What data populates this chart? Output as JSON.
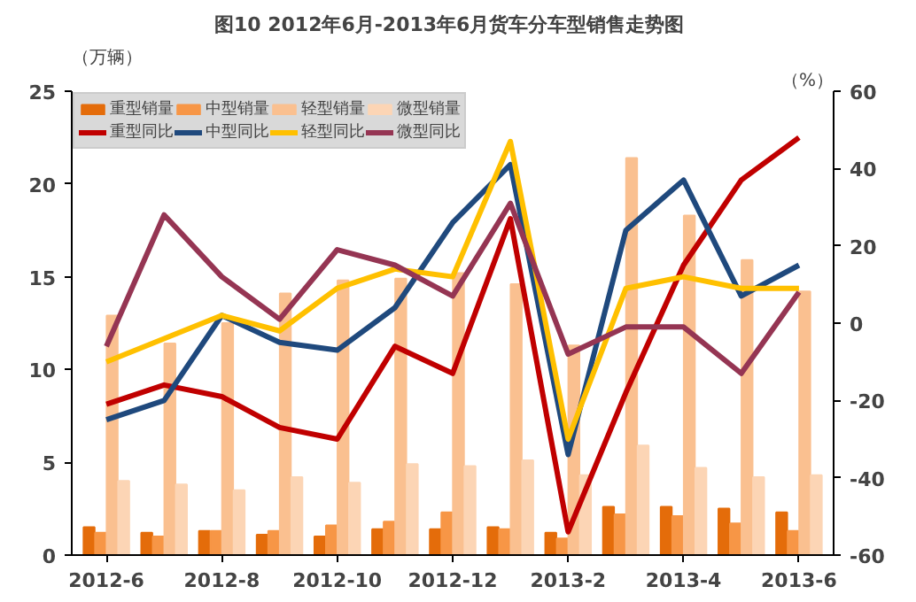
{
  "chart_data": {
    "type": "bar",
    "title": "图10  2012年6月-2013年6月货车分车型销售走势图",
    "ylabel": "（万辆）",
    "y2label": "（%）",
    "categories": [
      "2012-6",
      null,
      "2012-8",
      null,
      "2012-10",
      null,
      "2012-12",
      null,
      "2013-2",
      null,
      "2013-4",
      null,
      "2013-6"
    ],
    "series": [
      {
        "name": "重型销量",
        "color": "#e46c0a",
        "values": [
          1.5,
          1.2,
          1.3,
          1.1,
          1.0,
          1.4,
          1.4,
          1.5,
          1.2,
          2.6,
          2.6,
          2.5,
          2.3
        ]
      },
      {
        "name": "中型销量",
        "color": "#f79646",
        "values": [
          1.2,
          1.0,
          1.3,
          1.3,
          1.6,
          1.8,
          2.3,
          1.4,
          0.9,
          2.2,
          2.1,
          1.7,
          1.3
        ]
      },
      {
        "name": "轻型销量",
        "color": "#fac090",
        "values": [
          12.9,
          11.4,
          12.5,
          14.1,
          14.8,
          14.9,
          15.2,
          14.6,
          11.3,
          21.4,
          18.3,
          15.9,
          14.2
        ]
      },
      {
        "name": "微型销量",
        "color": "#fcd5b5",
        "values": [
          4.0,
          3.8,
          3.5,
          4.2,
          3.9,
          4.9,
          4.8,
          5.1,
          4.3,
          5.9,
          4.7,
          4.2,
          4.3
        ]
      },
      {
        "name": "重型同比",
        "color": "#c00000",
        "type": "line",
        "axis": "y2",
        "values": [
          -21,
          -16,
          -19,
          -27,
          -30,
          -6,
          -13,
          27,
          -54,
          -18,
          15,
          37,
          48
        ]
      },
      {
        "name": "中型同比",
        "color": "#1f497d",
        "type": "line",
        "axis": "y2",
        "values": [
          -25,
          -20,
          2,
          -5,
          -7,
          4,
          26,
          41,
          -34,
          24,
          37,
          7,
          15
        ]
      },
      {
        "name": "轻型同比",
        "color": "#ffc000",
        "type": "line",
        "axis": "y2",
        "values": [
          -10,
          -4,
          2,
          -2,
          9,
          14,
          12,
          47,
          -30,
          9,
          12,
          9,
          9
        ]
      },
      {
        "name": "微型同比",
        "color": "#953553",
        "type": "line",
        "axis": "y2",
        "values": [
          -6,
          28,
          12,
          1,
          19,
          15,
          7,
          31,
          -8,
          -1,
          -1,
          -13,
          8
        ]
      }
    ],
    "ylim": [
      0,
      25
    ],
    "yticks": [
      0,
      5,
      10,
      15,
      20,
      25
    ],
    "y2lim": [
      -60,
      60
    ],
    "y2ticks": [
      -60,
      -40,
      -20,
      0,
      20,
      40,
      60
    ],
    "grid": false,
    "legend": "top left",
    "line_style": "solid",
    "marker": "none"
  }
}
